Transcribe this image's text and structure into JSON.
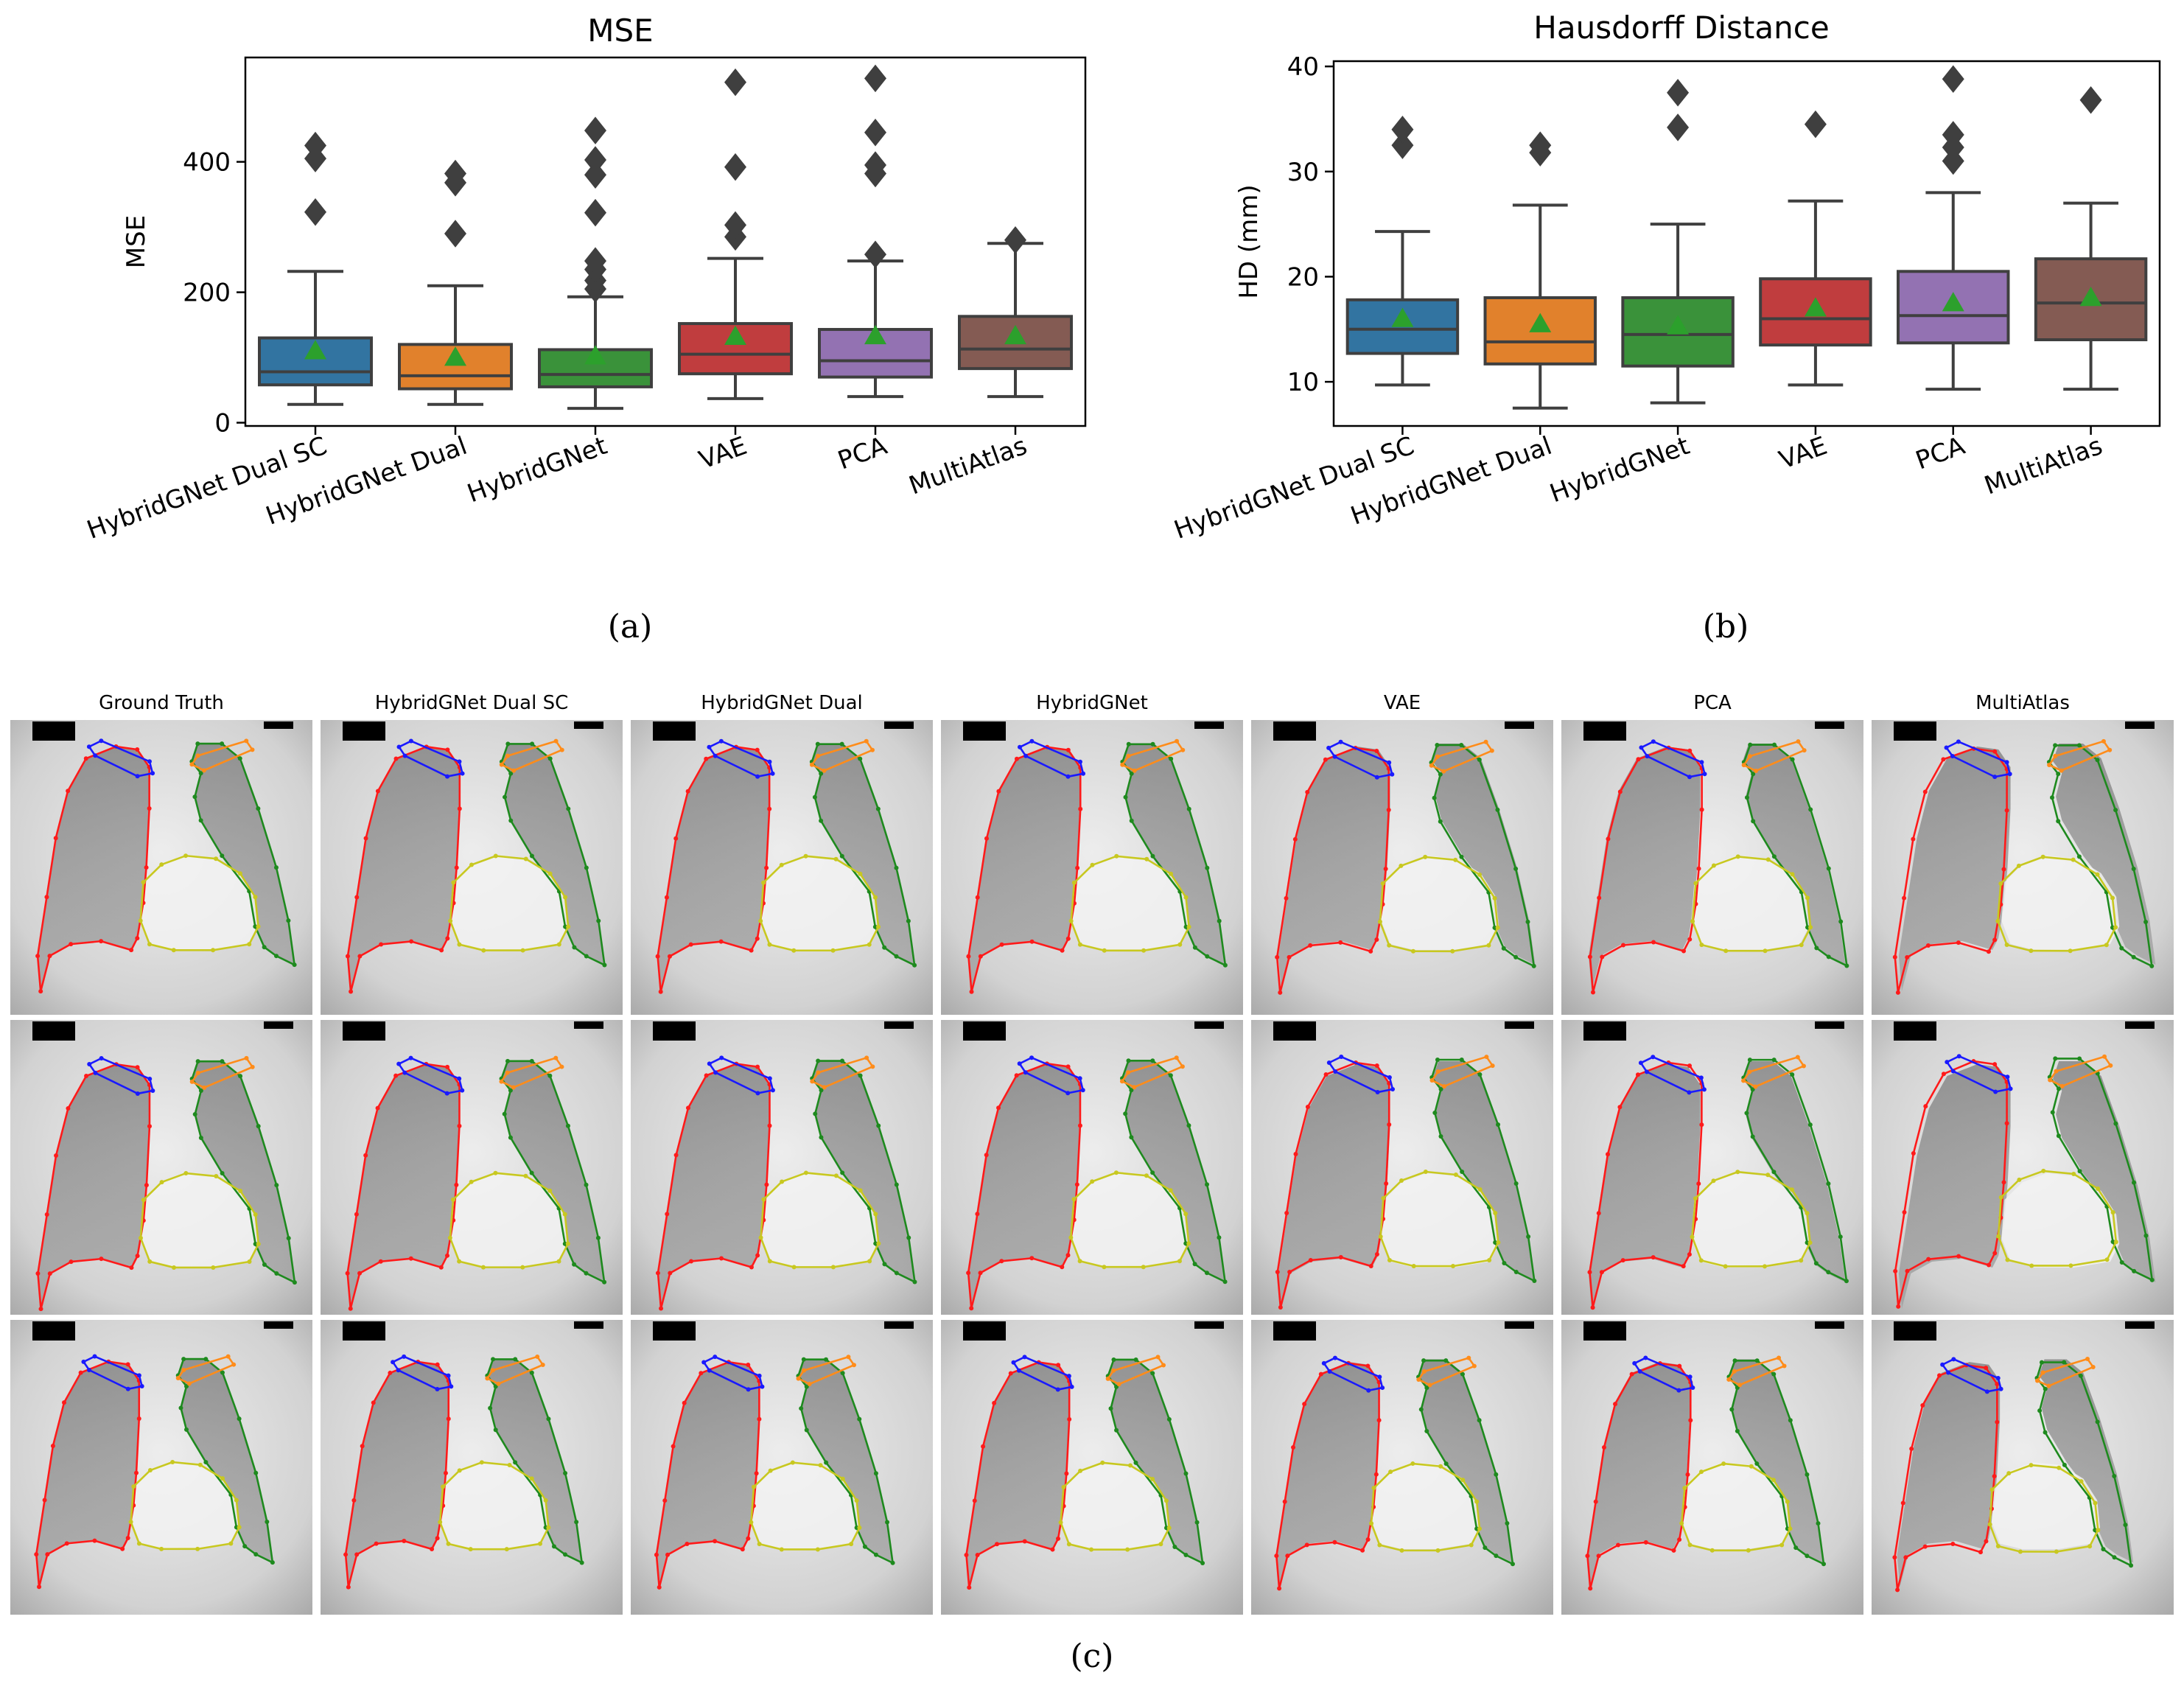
{
  "captions": {
    "a": "(a)",
    "b": "(b)",
    "c": "(c)"
  },
  "chart_data": [
    {
      "type": "box",
      "title": "MSE",
      "xlabel": "",
      "ylabel": "MSE",
      "ylim": [
        -5,
        560
      ],
      "yticks": [
        0,
        200,
        400
      ],
      "categories": [
        "HybridGNet Dual SC",
        "HybridGNet Dual",
        "HybridGNet",
        "VAE",
        "PCA",
        "MultiAtlas"
      ],
      "colors": [
        "#3274a1",
        "#e1812c",
        "#3a923a",
        "#c03d3e",
        "#9372b2",
        "#845b53"
      ],
      "mean_marker_color": "#2ca02c",
      "boxes": [
        {
          "whislo": 28,
          "q1": 58,
          "med": 78,
          "q3": 130,
          "whishi": 232,
          "mean": 110,
          "fliers": [
            323,
            405,
            425
          ]
        },
        {
          "whislo": 28,
          "q1": 52,
          "med": 72,
          "q3": 120,
          "whishi": 210,
          "mean": 100,
          "fliers": [
            290,
            368,
            382
          ]
        },
        {
          "whislo": 22,
          "q1": 55,
          "med": 74,
          "q3": 112,
          "whishi": 193,
          "mean": 102,
          "fliers": [
            205,
            218,
            235,
            248,
            322,
            380,
            403,
            448
          ]
        },
        {
          "whislo": 37,
          "q1": 75,
          "med": 105,
          "q3": 152,
          "whishi": 252,
          "mean": 132,
          "fliers": [
            285,
            303,
            392,
            522
          ]
        },
        {
          "whislo": 40,
          "q1": 70,
          "med": 95,
          "q3": 143,
          "whishi": 248,
          "mean": 133,
          "fliers": [
            258,
            382,
            395,
            445,
            528
          ]
        },
        {
          "whislo": 40,
          "q1": 83,
          "med": 113,
          "q3": 163,
          "whishi": 275,
          "mean": 133,
          "fliers": [
            280
          ]
        }
      ]
    },
    {
      "type": "box",
      "title": "Hausdorff Distance",
      "xlabel": "",
      "ylabel": "HD (mm)",
      "ylim": [
        5.8,
        40.5
      ],
      "yticks": [
        10,
        20,
        30,
        40
      ],
      "categories": [
        "HybridGNet Dual SC",
        "HybridGNet Dual",
        "HybridGNet",
        "VAE",
        "PCA",
        "MultiAtlas"
      ],
      "colors": [
        "#3274a1",
        "#e1812c",
        "#3a923a",
        "#c03d3e",
        "#9372b2",
        "#845b53"
      ],
      "mean_marker_color": "#2ca02c",
      "boxes": [
        {
          "whislo": 9.7,
          "q1": 12.7,
          "med": 15.0,
          "q3": 17.8,
          "whishi": 24.3,
          "mean": 16.0,
          "fliers": [
            32.5,
            34.0
          ]
        },
        {
          "whislo": 7.5,
          "q1": 11.7,
          "med": 13.8,
          "q3": 18.0,
          "whishi": 26.8,
          "mean": 15.5,
          "fliers": [
            31.8,
            32.5
          ]
        },
        {
          "whislo": 8.0,
          "q1": 11.5,
          "med": 14.5,
          "q3": 18.0,
          "whishi": 25.0,
          "mean": 15.3,
          "fliers": [
            34.2,
            37.5
          ]
        },
        {
          "whislo": 9.7,
          "q1": 13.5,
          "med": 16.0,
          "q3": 19.8,
          "whishi": 27.2,
          "mean": 17.0,
          "fliers": [
            34.5
          ]
        },
        {
          "whislo": 9.3,
          "q1": 13.7,
          "med": 16.3,
          "q3": 20.5,
          "whishi": 28.0,
          "mean": 17.5,
          "fliers": [
            31.0,
            32.3,
            33.5,
            38.8
          ]
        },
        {
          "whislo": 9.3,
          "q1": 14.0,
          "med": 17.5,
          "q3": 21.7,
          "whishi": 27.0,
          "mean": 18.0,
          "fliers": [
            36.8
          ]
        }
      ]
    }
  ],
  "panel_c": {
    "columns": [
      "Ground Truth",
      "HybridGNet Dual SC",
      "HybridGNet Dual",
      "HybridGNet",
      "VAE",
      "PCA",
      "MultiAtlas"
    ],
    "rows": 3,
    "contour_colors": {
      "right_lung": "#ff1a1a",
      "left_lung": "#1e8a1e",
      "heart": "#c8c820",
      "right_clavicle": "#1a1aff",
      "left_clavicle": "#ff8c1a"
    }
  }
}
